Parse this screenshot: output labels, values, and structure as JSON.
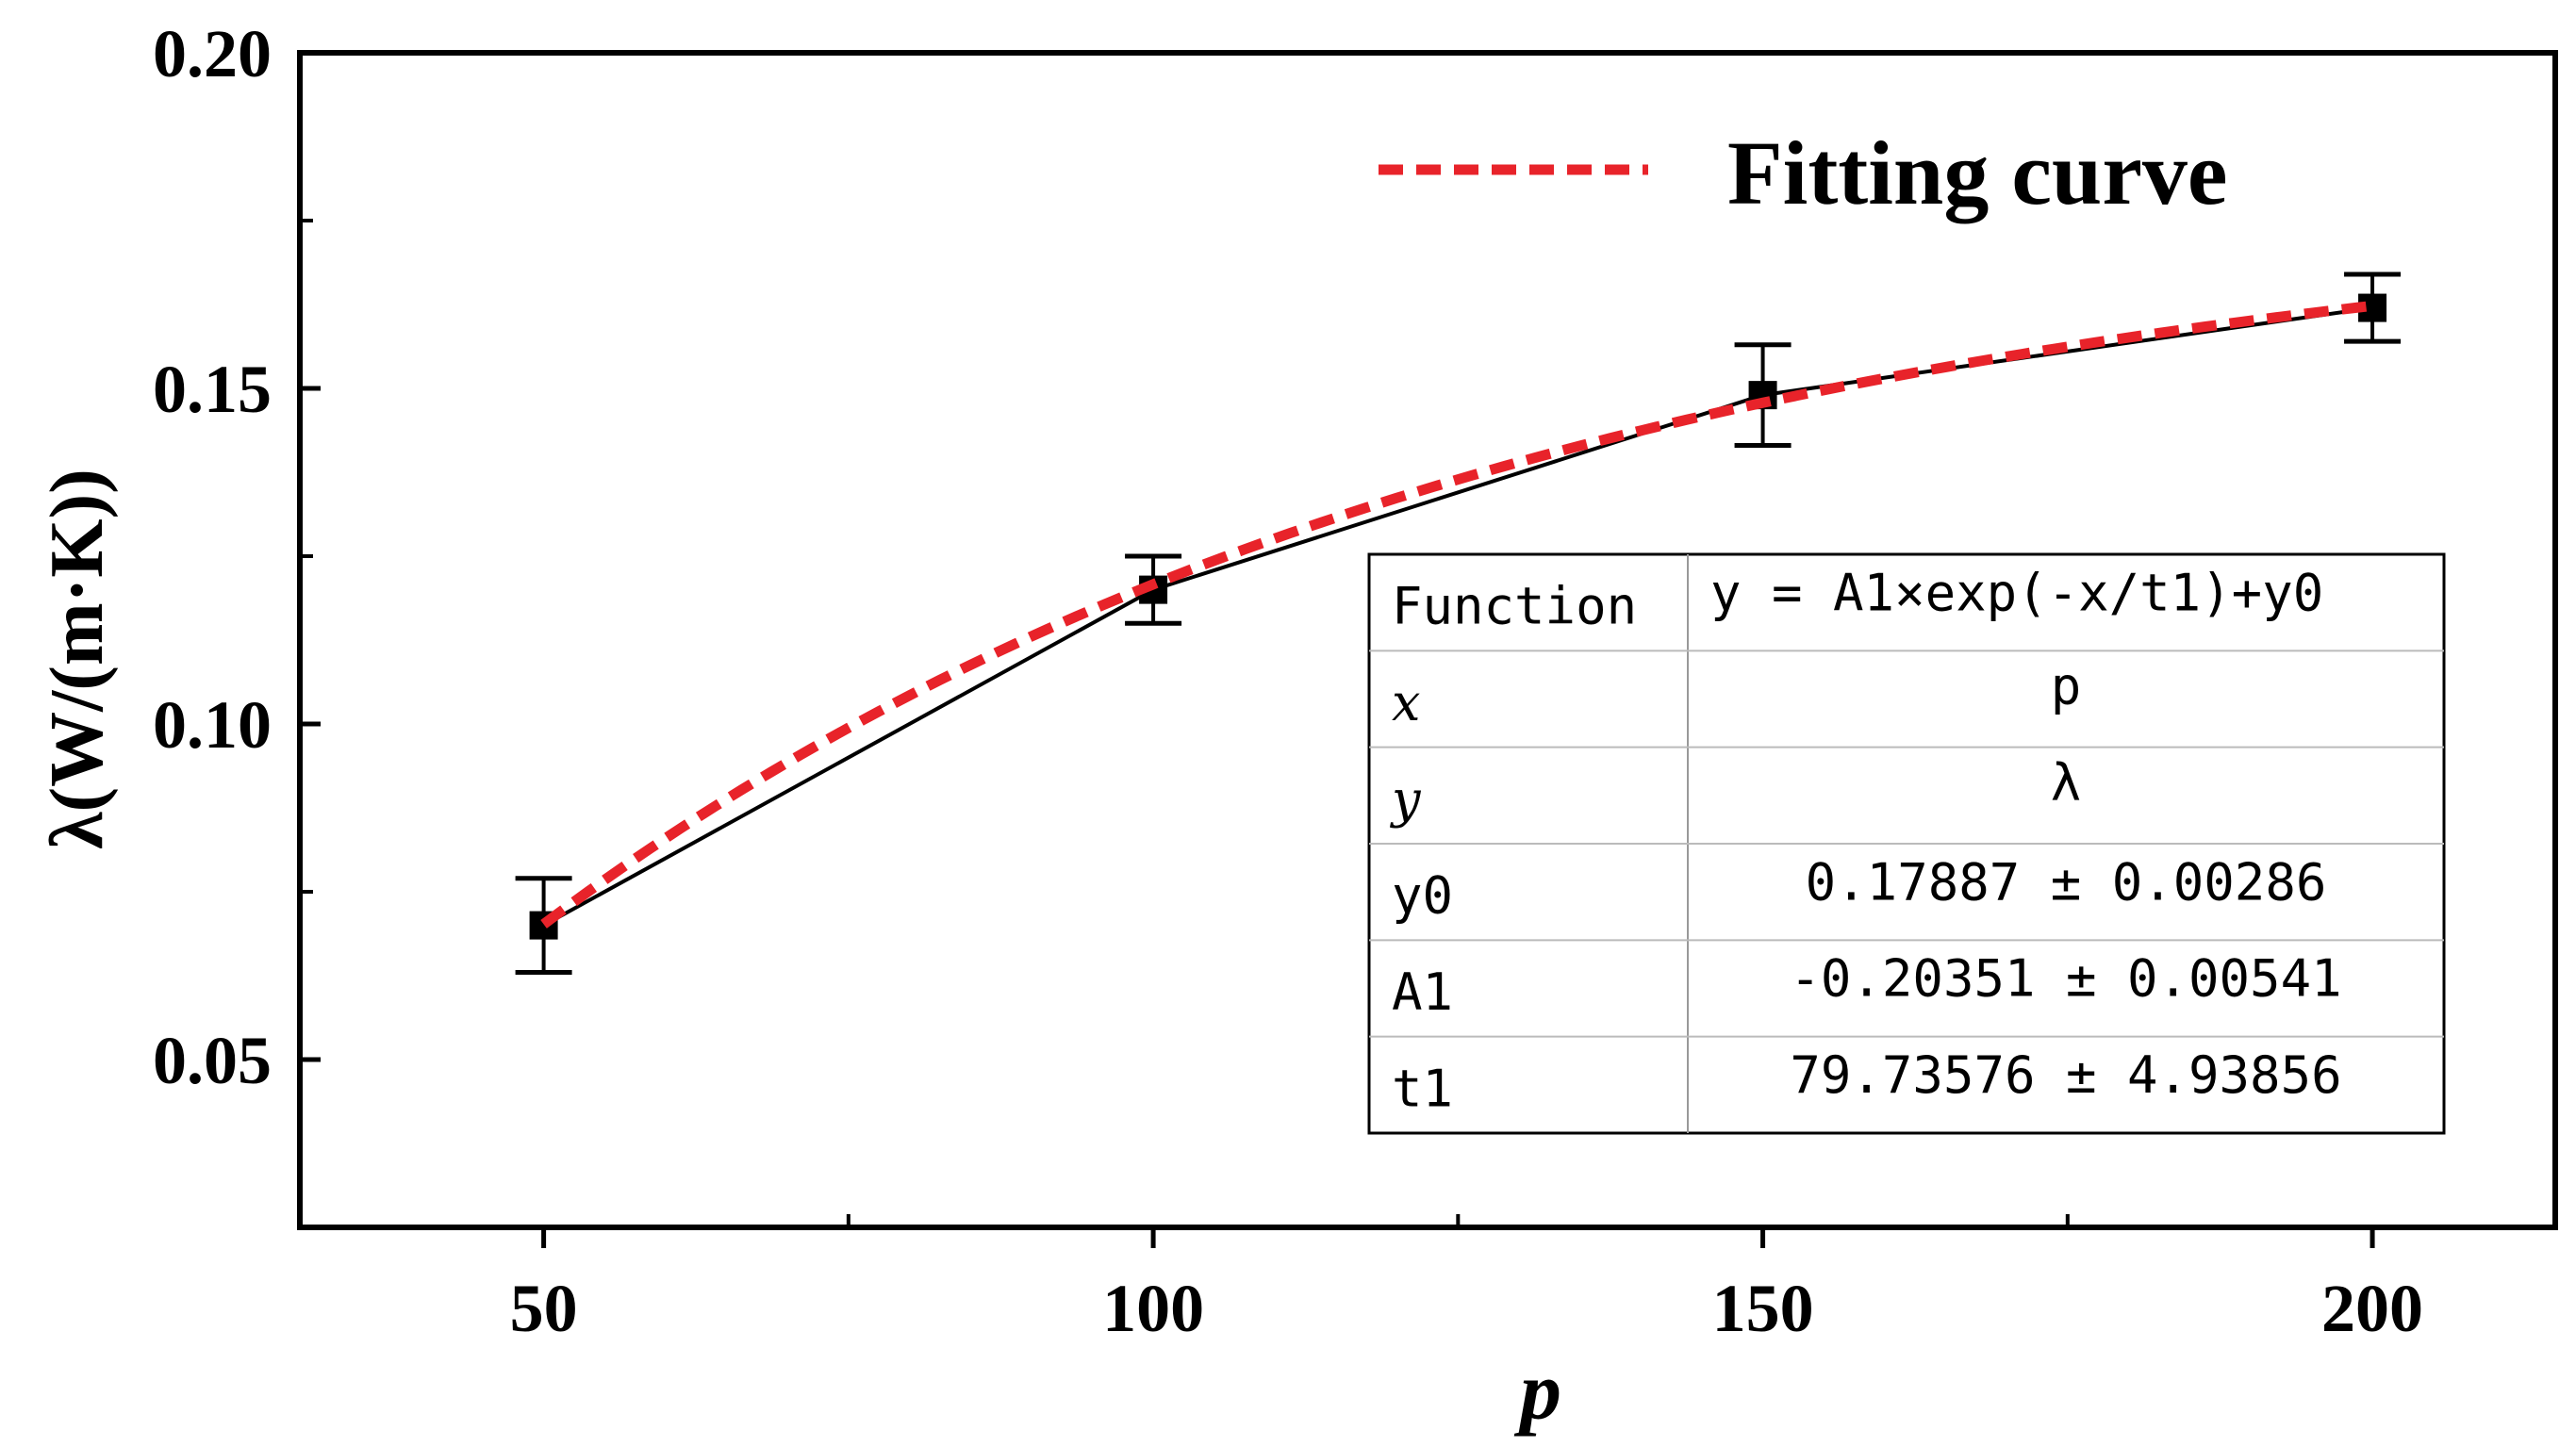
{
  "chart_data": {
    "type": "line",
    "xlabel": "p",
    "ylabel": "λ(W/(m·K))",
    "xlim": [
      30,
      215
    ],
    "ylim": [
      0.025,
      0.2
    ],
    "x_ticks": [
      50,
      100,
      150,
      200
    ],
    "x_tick_labels": [
      "50",
      "100",
      "150",
      "200"
    ],
    "y_ticks": [
      0.05,
      0.1,
      0.15,
      0.2
    ],
    "y_tick_labels": [
      "0.05",
      "0.10",
      "0.15",
      "0.20"
    ],
    "grid": false,
    "legend_position": "top-right",
    "series": [
      {
        "x": [
          50,
          100,
          150,
          200
        ],
        "y": [
          0.07,
          0.12,
          0.149,
          0.162
        ],
        "yerr": [
          0.007,
          0.005,
          0.0075,
          0.005
        ],
        "style": "solid",
        "color": "#000000",
        "marker": "square"
      },
      {
        "name": "Fitting curve",
        "function": "y = A1×exp(-x/t1)+y0",
        "params": {
          "y0": 0.17887,
          "A1": -0.20351,
          "t1": 79.73576
        },
        "x_range": [
          50,
          200
        ],
        "style": "dashed",
        "color": "#e8232a"
      }
    ],
    "fit_table": {
      "rows": [
        {
          "key": "Function",
          "value": "y = A1×exp(-x/t1)+y0",
          "italic_key": false
        },
        {
          "key": "x",
          "value": "p",
          "italic_key": true
        },
        {
          "key": "y",
          "value": "λ",
          "italic_key": true
        },
        {
          "key": "y0",
          "value": "0.17887 ± 0.00286",
          "italic_key": false
        },
        {
          "key": "A1",
          "value": "-0.20351 ± 0.00541",
          "italic_key": false
        },
        {
          "key": "t1",
          "value": "79.73576 ± 4.93856",
          "italic_key": false
        }
      ]
    }
  }
}
